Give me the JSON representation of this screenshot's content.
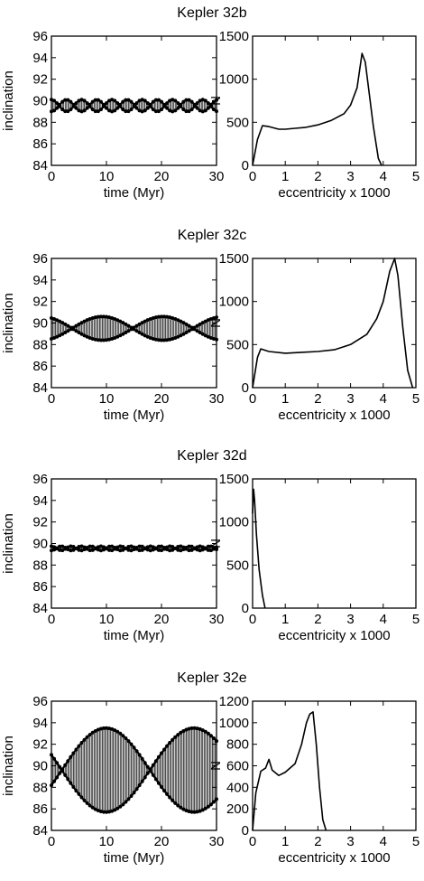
{
  "chart_data": [
    {
      "title": "Kepler 32b",
      "inclination": {
        "type": "line",
        "xlabel": "time (Myr)",
        "ylabel": "inclination",
        "xlim": [
          0,
          30
        ],
        "ylim": [
          84,
          96
        ],
        "xticks": [
          0,
          10,
          20,
          30
        ],
        "yticks": [
          84,
          86,
          88,
          90,
          92,
          94,
          96
        ],
        "series": [
          {
            "mean": 89.55,
            "amplitude": 0.55,
            "period": 5.5,
            "phase": 0.0
          }
        ]
      },
      "eccentricity": {
        "type": "line",
        "xlabel": "eccentricity x 1000",
        "ylabel": "N",
        "xlim": [
          0,
          5
        ],
        "ylim": [
          0,
          1500
        ],
        "xticks": [
          0,
          1,
          2,
          3,
          4,
          5
        ],
        "yticks": [
          0,
          500,
          1000,
          1500
        ],
        "x": [
          0.0,
          0.15,
          0.3,
          0.5,
          0.8,
          1.0,
          1.3,
          1.6,
          2.0,
          2.4,
          2.8,
          3.0,
          3.2,
          3.35,
          3.45,
          3.55,
          3.7,
          3.85,
          3.95
        ],
        "y": [
          0,
          300,
          460,
          450,
          420,
          420,
          430,
          440,
          470,
          520,
          600,
          700,
          900,
          1300,
          1200,
          900,
          450,
          80,
          0
        ]
      }
    },
    {
      "title": "Kepler 32c",
      "inclination": {
        "type": "line",
        "xlabel": "time (Myr)",
        "ylabel": "inclination",
        "xlim": [
          0,
          30
        ],
        "ylim": [
          84,
          96
        ],
        "xticks": [
          0,
          10,
          20,
          30
        ],
        "yticks": [
          84,
          86,
          88,
          90,
          92,
          94,
          96
        ],
        "series": [
          {
            "mean": 89.5,
            "amplitude": 1.1,
            "period": 22,
            "phase": 0.5
          }
        ]
      },
      "eccentricity": {
        "type": "line",
        "xlabel": "eccentricity x 1000",
        "ylabel": "N",
        "xlim": [
          0,
          5
        ],
        "ylim": [
          0,
          1500
        ],
        "xticks": [
          0,
          1,
          2,
          3,
          4,
          5
        ],
        "yticks": [
          0,
          500,
          1000,
          1500
        ],
        "x": [
          0.0,
          0.15,
          0.25,
          0.5,
          1.0,
          1.5,
          2.0,
          2.5,
          3.0,
          3.5,
          3.8,
          4.0,
          4.2,
          4.35,
          4.45,
          4.6,
          4.75,
          4.9
        ],
        "y": [
          0,
          350,
          450,
          420,
          400,
          410,
          420,
          440,
          500,
          620,
          800,
          1000,
          1350,
          1500,
          1300,
          700,
          200,
          0
        ]
      }
    },
    {
      "title": "Kepler 32d",
      "inclination": {
        "type": "line",
        "xlabel": "time (Myr)",
        "ylabel": "inclination",
        "xlim": [
          0,
          30
        ],
        "ylim": [
          84,
          96
        ],
        "xticks": [
          0,
          10,
          20,
          30
        ],
        "yticks": [
          84,
          86,
          88,
          90,
          92,
          94,
          96
        ],
        "series": [
          {
            "mean": 89.55,
            "amplitude": 0.2,
            "period": 3.6,
            "phase": 0.0
          }
        ]
      },
      "eccentricity": {
        "type": "line",
        "xlabel": "eccentricity x 1000",
        "ylabel": "N",
        "xlim": [
          0,
          5
        ],
        "ylim": [
          0,
          1500
        ],
        "xticks": [
          0,
          1,
          2,
          3,
          4,
          5
        ],
        "yticks": [
          0,
          500,
          1000,
          1500
        ],
        "x": [
          0.0,
          0.03,
          0.06,
          0.12,
          0.2,
          0.3,
          0.38
        ],
        "y": [
          1100,
          1380,
          1250,
          850,
          450,
          150,
          0
        ]
      }
    },
    {
      "title": "Kepler 32e",
      "inclination": {
        "type": "line",
        "xlabel": "time (Myr)",
        "ylabel": "inclination",
        "xlim": [
          0,
          30
        ],
        "ylim": [
          84,
          96
        ],
        "xticks": [
          0,
          10,
          20,
          30
        ],
        "yticks": [
          84,
          86,
          88,
          90,
          92,
          94,
          96
        ],
        "series": [
          {
            "mean": 89.6,
            "amplitude": 3.9,
            "period": 32,
            "phase": 1.2
          }
        ]
      },
      "eccentricity": {
        "type": "line",
        "xlabel": "eccentricity x 1000",
        "ylabel": "N",
        "xlim": [
          0,
          5
        ],
        "ylim": [
          0,
          1200
        ],
        "xticks": [
          0,
          1,
          2,
          3,
          4,
          5
        ],
        "yticks": [
          0,
          200,
          400,
          600,
          800,
          1000,
          1200
        ],
        "x": [
          0.0,
          0.1,
          0.25,
          0.4,
          0.5,
          0.6,
          0.8,
          1.0,
          1.3,
          1.5,
          1.65,
          1.75,
          1.85,
          1.95,
          2.05,
          2.15,
          2.25
        ],
        "y": [
          0,
          350,
          550,
          580,
          660,
          560,
          510,
          540,
          620,
          800,
          1000,
          1080,
          1100,
          800,
          400,
          100,
          0
        ]
      }
    }
  ]
}
